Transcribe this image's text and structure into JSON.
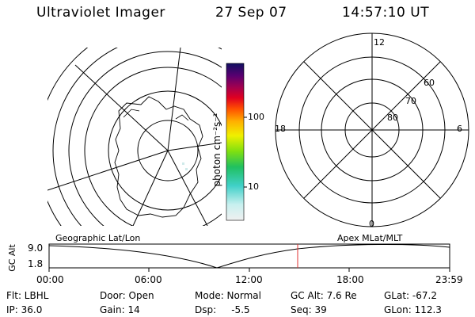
{
  "header": {
    "title": "Ultraviolet Imager",
    "date": "27 Sep 07",
    "time": "14:57:10 UT"
  },
  "colorbar": {
    "unit_label": "photon cm⁻²s⁻¹",
    "tick_labels": [
      "100",
      "10"
    ]
  },
  "polar_plot": {
    "mlt_labels": [
      "12",
      "18",
      "6",
      "0"
    ],
    "lat_labels": [
      "60",
      "70",
      "80"
    ]
  },
  "timeline": {
    "left_title": "Geographic Lat/Lon",
    "right_title": "Apex MLat/MLT",
    "y_label": "GC Alt",
    "y_ticks": [
      "9.0",
      "1.8"
    ],
    "x_ticks": [
      "00:00",
      "06:00",
      "12:00",
      "18:00",
      "23:59"
    ],
    "marker_color": "#e03030"
  },
  "info": {
    "flt": "Flt: LBHL",
    "door": "Door: Open",
    "mode": "Mode: Normal",
    "gc_alt": "GC Alt: 7.6 Re",
    "glat": "GLat: -67.2",
    "ip": "IP: 36.0",
    "gain": "Gain: 14",
    "dsp": "Dsp:     -5.5",
    "seq": "Seq: 39",
    "glon": "GLon: 112.3"
  }
}
